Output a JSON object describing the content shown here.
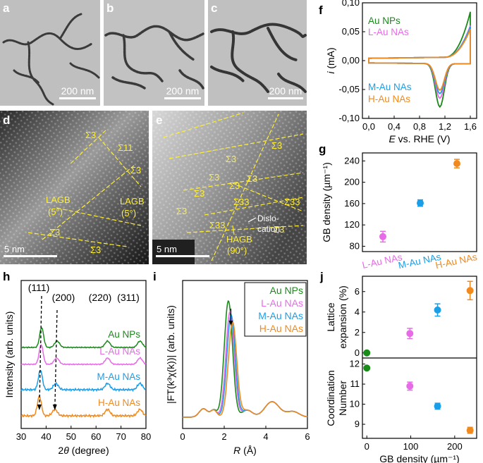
{
  "panels": {
    "a": {
      "letter": "a",
      "scale_bar": ""
    },
    "b": {
      "letter": "b",
      "scale_bar": ""
    },
    "c": {
      "letter": "c",
      "scale_bar": "200 nm"
    },
    "b_scale": "200 nm",
    "a_scale": "200 nm",
    "d": {
      "letter": "d",
      "scale_bar": "5 nm",
      "labels": [
        "Σ3",
        "Σ11",
        "Σ3",
        "LAGB",
        "(5°)",
        "LAGB",
        "(5°)",
        "Σ3",
        "Σ3"
      ]
    },
    "e": {
      "letter": "e",
      "scale_bar": "5 nm",
      "labels": [
        "Σ3",
        "Σ3",
        "Σ3",
        "Σ3",
        "Σ33",
        "Σ33",
        "Σ33",
        "Σ3",
        "Σ3",
        "Σ3",
        "Σ3",
        "Dislo-",
        "cation",
        "HAGB",
        "(90°)"
      ]
    }
  },
  "colors": {
    "green": "#1a8a1a",
    "pink": "#e86ae8",
    "blue": "#1a9ee8",
    "orange": "#f08a1e",
    "yellow": "#ffee33"
  },
  "chart_data": [
    {
      "panel": "f",
      "type": "line",
      "xlabel_italic": "E",
      "xlabel_rest": " vs. RHE (V)",
      "ylabel_italic": "i",
      "ylabel_rest": " (mA)",
      "xlim": [
        -0.1,
        1.7
      ],
      "ylim": [
        -0.1,
        0.1
      ],
      "xticks": [
        "0,0",
        "0,4",
        "0,8",
        "1,2",
        "1,6"
      ],
      "yticks": [
        "0,10",
        "0,05",
        "0,00",
        "-0,05",
        "-0,10"
      ],
      "legend": [
        "Au NPs",
        "L-Au NAs",
        "M-Au NAs",
        "H-Au NAs"
      ],
      "series": [
        {
          "name": "Au NPs",
          "color": "green",
          "peak_anodic": 0.078,
          "peak_cathodic": -0.075,
          "cathodic_E": 1.12
        },
        {
          "name": "L-Au NAs",
          "color": "pink",
          "peak_anodic": 0.054,
          "peak_cathodic": -0.06,
          "cathodic_E": 1.12
        },
        {
          "name": "M-Au NAs",
          "color": "blue",
          "peak_anodic": 0.052,
          "peak_cathodic": -0.052,
          "cathodic_E": 1.12
        },
        {
          "name": "H-Au NAs",
          "color": "orange",
          "peak_anodic": 0.048,
          "peak_cathodic": -0.046,
          "cathodic_E": 1.12
        }
      ]
    },
    {
      "panel": "g",
      "type": "scatter",
      "ylabel": "GB density (µm⁻¹)",
      "ylim": [
        70,
        255
      ],
      "yticks": [
        "240",
        "200",
        "160",
        "120",
        "80"
      ],
      "categories": [
        "L-Au NAs",
        "M-Au NAs",
        "H-Au NAs"
      ],
      "values": [
        98,
        161,
        235
      ],
      "errors": [
        10,
        6,
        8
      ],
      "colors": [
        "pink",
        "blue",
        "orange"
      ]
    },
    {
      "panel": "h",
      "type": "line",
      "xlabel_pre": "2",
      "xlabel_italic": "θ",
      "xlabel_rest": " (degree)",
      "ylabel": "Intensity (arb. units)",
      "xlim": [
        30,
        80
      ],
      "xticks": [
        "30",
        "40",
        "50",
        "60",
        "70",
        "80"
      ],
      "peaks": [
        "(111)",
        "(200)",
        "(220)",
        "(311)"
      ],
      "series": [
        {
          "name": "Au NPs",
          "color": "green",
          "p111": 38.2
        },
        {
          "name": "L-Au NAs",
          "color": "pink",
          "p111": 38.0
        },
        {
          "name": "M-Au NAs",
          "color": "blue",
          "p111": 37.7
        },
        {
          "name": "H-Au NAs",
          "color": "orange",
          "p111": 37.3
        }
      ]
    },
    {
      "panel": "i",
      "type": "line",
      "xlabel_italic": "R",
      "xlabel_rest": " (Å)",
      "ylabel": "|FT(k³χ(k))| (arb. units)",
      "xlim": [
        0,
        6
      ],
      "xticks": [
        "0",
        "2",
        "4",
        "6"
      ],
      "legend": [
        "Au NPs",
        "L-Au NAs",
        "M-Au NAs",
        "H-Au NAs"
      ],
      "series": [
        {
          "name": "Au NPs",
          "color": "green",
          "peak_R": 2.2
        },
        {
          "name": "L-Au NAs",
          "color": "pink",
          "peak_R": 2.28
        },
        {
          "name": "M-Au NAs",
          "color": "blue",
          "peak_R": 2.33
        },
        {
          "name": "H-Au NAs",
          "color": "orange",
          "peak_R": 2.4
        }
      ]
    },
    {
      "panel": "j",
      "type": "scatter",
      "xlabel": "GB density (µm⁻¹)",
      "xlim": [
        -10,
        250
      ],
      "xticks": [
        "0",
        "100",
        "200"
      ],
      "top": {
        "ylabel": [
          "Lattice",
          "expansion (%)"
        ],
        "ylim": [
          -0.5,
          7.5
        ],
        "yticks": [
          "6",
          "4",
          "2",
          "0"
        ],
        "x": [
          0,
          98,
          161,
          235
        ],
        "y": [
          0,
          1.9,
          4.2,
          6.1
        ],
        "err": [
          0,
          0.5,
          0.6,
          0.9
        ]
      },
      "bottom": {
        "ylabel": [
          "Coordination",
          "Number"
        ],
        "ylim": [
          8.3,
          12.3
        ],
        "yticks": [
          "12",
          "11",
          "10",
          "9"
        ],
        "x": [
          0,
          98,
          161,
          235
        ],
        "y": [
          11.8,
          10.9,
          9.9,
          8.7
        ],
        "err": [
          0,
          0.2,
          0.15,
          0.15
        ]
      },
      "colors": [
        "green",
        "pink",
        "blue",
        "orange"
      ]
    }
  ]
}
